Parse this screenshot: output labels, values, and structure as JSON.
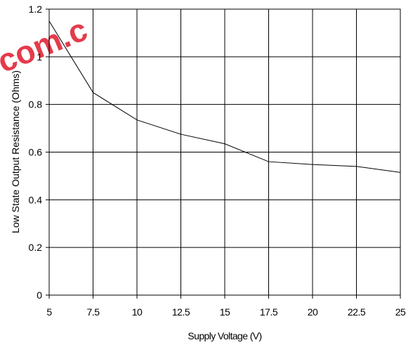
{
  "watermark": {
    "text": "com.c",
    "color": "#e53b4b"
  },
  "chart_data": {
    "type": "line",
    "title": "",
    "xlabel": "Supply Voltage (V)",
    "ylabel": "Low State Output Resistance (Ohms)",
    "xlim": [
      5,
      25
    ],
    "ylim": [
      0,
      1.2
    ],
    "grid": true,
    "x_ticks": [
      "5",
      "7.5",
      "10",
      "12.5",
      "15",
      "17.5",
      "20",
      "22.5",
      "25"
    ],
    "y_ticks": [
      "0",
      "0.2",
      "0.4",
      "0.6",
      "0.8",
      "1",
      "1.2"
    ],
    "series": [
      {
        "x": [
          5,
          7.5,
          10,
          12.5,
          15,
          17.5,
          20,
          22.5,
          25
        ],
        "y": [
          1.15,
          0.85,
          0.735,
          0.675,
          0.635,
          0.56,
          0.548,
          0.54,
          0.515
        ],
        "color": "#000000"
      }
    ]
  }
}
